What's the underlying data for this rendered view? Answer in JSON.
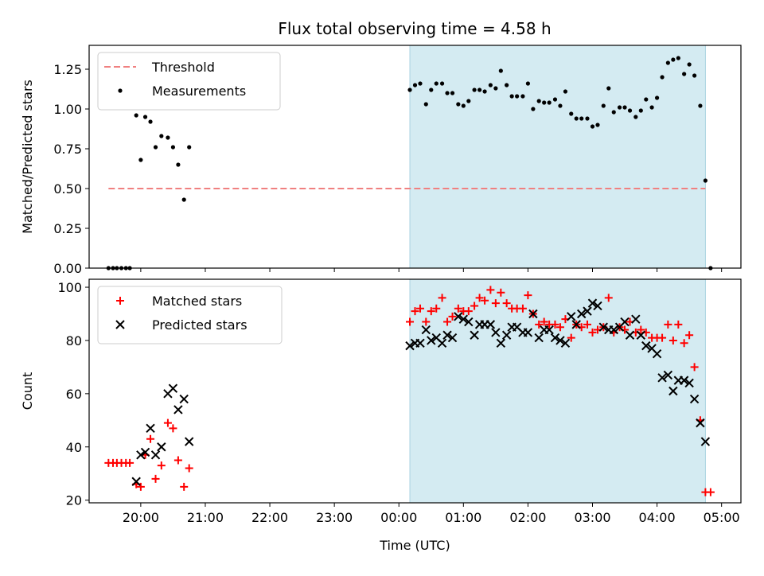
{
  "chart_data": [
    {
      "type": "scatter",
      "title": "Flux total observing time = 4.58 h",
      "xlabel": "",
      "ylabel": "Matched/Predicted stars",
      "ylim": [
        0,
        1.4
      ],
      "yticks": [
        "0.00",
        "0.25",
        "0.50",
        "0.75",
        "1.00",
        "1.25"
      ],
      "xlim": [
        19.2,
        29.3
      ],
      "x_tick_labels": [
        "20:00",
        "21:00",
        "22:00",
        "23:00",
        "00:00",
        "01:00",
        "02:00",
        "03:00",
        "04:00",
        "05:00"
      ],
      "threshold": {
        "name": "Threshold",
        "value": 0.5,
        "color": "#f08080",
        "x_range": [
          19.5,
          28.75
        ]
      },
      "shaded_region": {
        "x_range": [
          24.17,
          28.75
        ],
        "color": "#d4ebf2"
      },
      "legend_position": "upper-left",
      "series": [
        {
          "name": "Measurements",
          "color": "#000000",
          "x": [
            19.5,
            19.57,
            19.63,
            19.7,
            19.77,
            19.83,
            19.93,
            20.0,
            20.07,
            20.15,
            20.23,
            20.32,
            20.42,
            20.5,
            20.58,
            20.67,
            20.75,
            24.17,
            24.25,
            24.33,
            24.42,
            24.5,
            24.58,
            24.67,
            24.75,
            24.83,
            24.92,
            25.0,
            25.08,
            25.17,
            25.25,
            25.33,
            25.42,
            25.5,
            25.58,
            25.67,
            25.75,
            25.83,
            25.92,
            26.0,
            26.08,
            26.17,
            26.25,
            26.33,
            26.42,
            26.5,
            26.58,
            26.67,
            26.75,
            26.83,
            26.92,
            27.0,
            27.08,
            27.17,
            27.25,
            27.33,
            27.42,
            27.5,
            27.58,
            27.67,
            27.75,
            27.83,
            27.92,
            28.0,
            28.08,
            28.17,
            28.25,
            28.33,
            28.42,
            28.5,
            28.58,
            28.67,
            28.75,
            28.83
          ],
          "y": [
            0.0,
            0.0,
            0.0,
            0.0,
            0.0,
            0.0,
            0.96,
            0.68,
            0.95,
            0.92,
            0.76,
            0.83,
            0.82,
            0.76,
            0.65,
            0.43,
            0.76,
            1.12,
            1.15,
            1.16,
            1.03,
            1.12,
            1.16,
            1.16,
            1.1,
            1.1,
            1.03,
            1.02,
            1.05,
            1.12,
            1.12,
            1.11,
            1.15,
            1.13,
            1.24,
            1.15,
            1.08,
            1.08,
            1.08,
            1.16,
            1.0,
            1.05,
            1.04,
            1.04,
            1.06,
            1.02,
            1.11,
            0.97,
            0.94,
            0.94,
            0.94,
            0.89,
            0.9,
            1.02,
            1.13,
            0.98,
            1.01,
            1.01,
            0.99,
            0.95,
            0.99,
            1.06,
            1.01,
            1.07,
            1.2,
            1.29,
            1.31,
            1.32,
            1.22,
            1.28,
            1.21,
            1.02,
            0.55,
            0.0
          ]
        }
      ]
    },
    {
      "type": "scatter",
      "title": "",
      "xlabel": "Time (UTC)",
      "ylabel": "Count",
      "ylim": [
        19,
        103
      ],
      "yticks": [
        "20",
        "40",
        "60",
        "80",
        "100"
      ],
      "xlim": [
        19.2,
        29.3
      ],
      "x_tick_labels": [
        "20:00",
        "21:00",
        "22:00",
        "23:00",
        "00:00",
        "01:00",
        "02:00",
        "03:00",
        "04:00",
        "05:00"
      ],
      "shaded_region": {
        "x_range": [
          24.17,
          28.75
        ],
        "color": "#d4ebf2"
      },
      "legend_position": "upper-left",
      "series": [
        {
          "name": "Matched stars",
          "marker": "plus",
          "color": "#ff0000",
          "x": [
            19.5,
            19.57,
            19.63,
            19.7,
            19.77,
            19.83,
            19.93,
            20.0,
            20.07,
            20.15,
            20.23,
            20.32,
            20.42,
            20.5,
            20.58,
            20.67,
            20.75,
            24.17,
            24.25,
            24.33,
            24.42,
            24.5,
            24.58,
            24.67,
            24.75,
            24.83,
            24.92,
            25.0,
            25.08,
            25.17,
            25.25,
            25.33,
            25.42,
            25.5,
            25.58,
            25.67,
            25.75,
            25.83,
            25.92,
            26.0,
            26.08,
            26.17,
            26.25,
            26.33,
            26.42,
            26.5,
            26.58,
            26.67,
            26.75,
            26.83,
            26.92,
            27.0,
            27.08,
            27.17,
            27.25,
            27.33,
            27.42,
            27.5,
            27.58,
            27.67,
            27.75,
            27.83,
            27.92,
            28.0,
            28.08,
            28.17,
            28.25,
            28.33,
            28.42,
            28.5,
            28.58,
            28.67,
            28.75,
            28.83
          ],
          "y": [
            34,
            34,
            34,
            34,
            34,
            34,
            26,
            25,
            37,
            43,
            28,
            33,
            49,
            47,
            35,
            25,
            32,
            87,
            91,
            92,
            87,
            91,
            92,
            96,
            87,
            89,
            92,
            91,
            91,
            93,
            96,
            95,
            99,
            94,
            98,
            94,
            92,
            92,
            92,
            97,
            90,
            86,
            87,
            86,
            86,
            85,
            88,
            81,
            86,
            85,
            86,
            83,
            84,
            85,
            96,
            83,
            85,
            84,
            87,
            83,
            84,
            83,
            81,
            81,
            81,
            86,
            80,
            86,
            79,
            82,
            70,
            50,
            23,
            23
          ]
        },
        {
          "name": "Predicted stars",
          "marker": "x",
          "color": "#000000",
          "x": [
            19.93,
            20.0,
            20.07,
            20.15,
            20.23,
            20.32,
            20.42,
            20.5,
            20.58,
            20.67,
            20.75,
            24.17,
            24.25,
            24.33,
            24.42,
            24.5,
            24.58,
            24.67,
            24.75,
            24.83,
            24.92,
            25.0,
            25.08,
            25.17,
            25.25,
            25.33,
            25.42,
            25.5,
            25.58,
            25.67,
            25.75,
            25.83,
            25.92,
            26.0,
            26.08,
            26.17,
            26.25,
            26.33,
            26.42,
            26.5,
            26.58,
            26.67,
            26.75,
            26.83,
            26.92,
            27.0,
            27.08,
            27.17,
            27.25,
            27.33,
            27.42,
            27.5,
            27.58,
            27.67,
            27.75,
            27.83,
            27.92,
            28.0,
            28.08,
            28.17,
            28.25,
            28.33,
            28.42,
            28.5,
            28.58,
            28.67,
            28.75
          ],
          "y": [
            27,
            37,
            38,
            47,
            37,
            40,
            60,
            62,
            54,
            58,
            42,
            78,
            79,
            79,
            84,
            80,
            81,
            79,
            82,
            81,
            89,
            88,
            87,
            82,
            86,
            86,
            86,
            83,
            79,
            82,
            85,
            85,
            83,
            83,
            90,
            81,
            84,
            84,
            81,
            80,
            79,
            89,
            86,
            90,
            91,
            94,
            93,
            85,
            84,
            84,
            85,
            87,
            82,
            88,
            82,
            78,
            77,
            75,
            66,
            67,
            61,
            65,
            65,
            64,
            58,
            49,
            42
          ]
        }
      ]
    }
  ]
}
